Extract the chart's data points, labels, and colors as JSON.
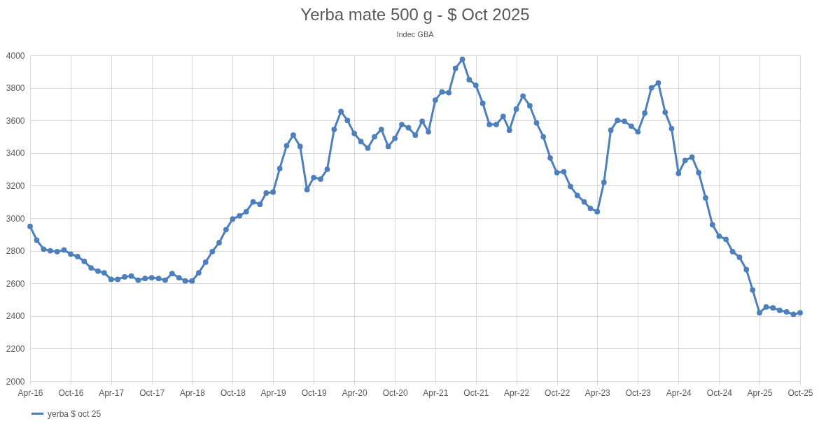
{
  "chart_data": {
    "type": "line",
    "title": "Yerba mate 500 g - $ Oct 2025",
    "subtitle": "Indec GBA",
    "x": [
      "2016-04",
      "2016-05",
      "2016-06",
      "2016-07",
      "2016-08",
      "2016-09",
      "2016-10",
      "2016-11",
      "2016-12",
      "2017-01",
      "2017-02",
      "2017-03",
      "2017-04",
      "2017-05",
      "2017-06",
      "2017-07",
      "2017-08",
      "2017-09",
      "2017-10",
      "2017-11",
      "2017-12",
      "2018-01",
      "2018-02",
      "2018-03",
      "2018-04",
      "2018-05",
      "2018-06",
      "2018-07",
      "2018-08",
      "2018-09",
      "2018-10",
      "2018-11",
      "2018-12",
      "2019-01",
      "2019-02",
      "2019-03",
      "2019-04",
      "2019-05",
      "2019-06",
      "2019-07",
      "2019-08",
      "2019-09",
      "2019-10",
      "2019-11",
      "2019-12",
      "2020-01",
      "2020-02",
      "2020-03",
      "2020-04",
      "2020-05",
      "2020-06",
      "2020-07",
      "2020-08",
      "2020-09",
      "2020-10",
      "2020-11",
      "2020-12",
      "2021-01",
      "2021-02",
      "2021-03",
      "2021-04",
      "2021-05",
      "2021-06",
      "2021-07",
      "2021-08",
      "2021-09",
      "2021-10",
      "2021-11",
      "2021-12",
      "2022-01",
      "2022-02",
      "2022-03",
      "2022-04",
      "2022-05",
      "2022-06",
      "2022-07",
      "2022-08",
      "2022-09",
      "2022-10",
      "2022-11",
      "2022-12",
      "2023-01",
      "2023-02",
      "2023-03",
      "2023-04",
      "2023-05",
      "2023-06",
      "2023-07",
      "2023-08",
      "2023-09",
      "2023-10",
      "2023-11",
      "2023-12",
      "2024-01",
      "2024-02",
      "2024-03",
      "2024-04",
      "2024-05",
      "2024-06",
      "2024-07",
      "2024-08",
      "2024-09",
      "2024-10",
      "2024-11",
      "2024-12",
      "2025-01",
      "2025-02",
      "2025-03",
      "2025-04",
      "2025-05",
      "2025-06",
      "2025-07",
      "2025-08",
      "2025-09",
      "2025-10"
    ],
    "series": [
      {
        "name": "yerba $ oct 25",
        "color": "#4e7fbd",
        "values": [
          2950,
          2865,
          2810,
          2800,
          2795,
          2805,
          2780,
          2765,
          2735,
          2695,
          2675,
          2665,
          2625,
          2625,
          2640,
          2645,
          2620,
          2630,
          2635,
          2630,
          2620,
          2660,
          2635,
          2615,
          2615,
          2665,
          2730,
          2795,
          2850,
          2930,
          2995,
          3015,
          3040,
          3100,
          3085,
          3155,
          3160,
          3305,
          3445,
          3510,
          3440,
          3175,
          3250,
          3240,
          3300,
          3545,
          3655,
          3600,
          3520,
          3470,
          3430,
          3500,
          3545,
          3440,
          3490,
          3575,
          3555,
          3510,
          3595,
          3530,
          3725,
          3775,
          3770,
          3920,
          3975,
          3850,
          3815,
          3705,
          3575,
          3575,
          3625,
          3540,
          3670,
          3750,
          3690,
          3585,
          3500,
          3370,
          3280,
          3285,
          3195,
          3140,
          3100,
          3060,
          3040,
          3220,
          3540,
          3600,
          3595,
          3565,
          3530,
          3645,
          3800,
          3830,
          3650,
          3550,
          3275,
          3355,
          3375,
          3280,
          3125,
          2960,
          2890,
          2870,
          2795,
          2760,
          2685,
          2560,
          2420,
          2455,
          2450,
          2435,
          2425,
          2410,
          2420
        ]
      }
    ],
    "xlim": [
      "2016-04",
      "2025-10"
    ],
    "xticks": [
      {
        "value": "2016-04",
        "label": "Apr-16"
      },
      {
        "value": "2016-10",
        "label": "Oct-16"
      },
      {
        "value": "2017-04",
        "label": "Apr-17"
      },
      {
        "value": "2017-10",
        "label": "Oct-17"
      },
      {
        "value": "2018-04",
        "label": "Apr-18"
      },
      {
        "value": "2018-10",
        "label": "Oct-18"
      },
      {
        "value": "2019-04",
        "label": "Apr-19"
      },
      {
        "value": "2019-10",
        "label": "Oct-19"
      },
      {
        "value": "2020-04",
        "label": "Apr-20"
      },
      {
        "value": "2020-10",
        "label": "Oct-20"
      },
      {
        "value": "2021-04",
        "label": "Apr-21"
      },
      {
        "value": "2021-10",
        "label": "Oct-21"
      },
      {
        "value": "2022-04",
        "label": "Apr-22"
      },
      {
        "value": "2022-10",
        "label": "Oct-22"
      },
      {
        "value": "2023-04",
        "label": "Apr-23"
      },
      {
        "value": "2023-10",
        "label": "Oct-23"
      },
      {
        "value": "2024-04",
        "label": "Apr-24"
      },
      {
        "value": "2024-10",
        "label": "Oct-24"
      },
      {
        "value": "2025-04",
        "label": "Apr-25"
      },
      {
        "value": "2025-10",
        "label": "Oct-25"
      }
    ],
    "ylim": [
      2000,
      4000
    ],
    "yticks": [
      2000,
      2200,
      2400,
      2600,
      2800,
      3000,
      3200,
      3400,
      3600,
      3800,
      4000
    ],
    "grid": true,
    "legend": "bottom",
    "marker": "circle",
    "line_style": "solid"
  }
}
